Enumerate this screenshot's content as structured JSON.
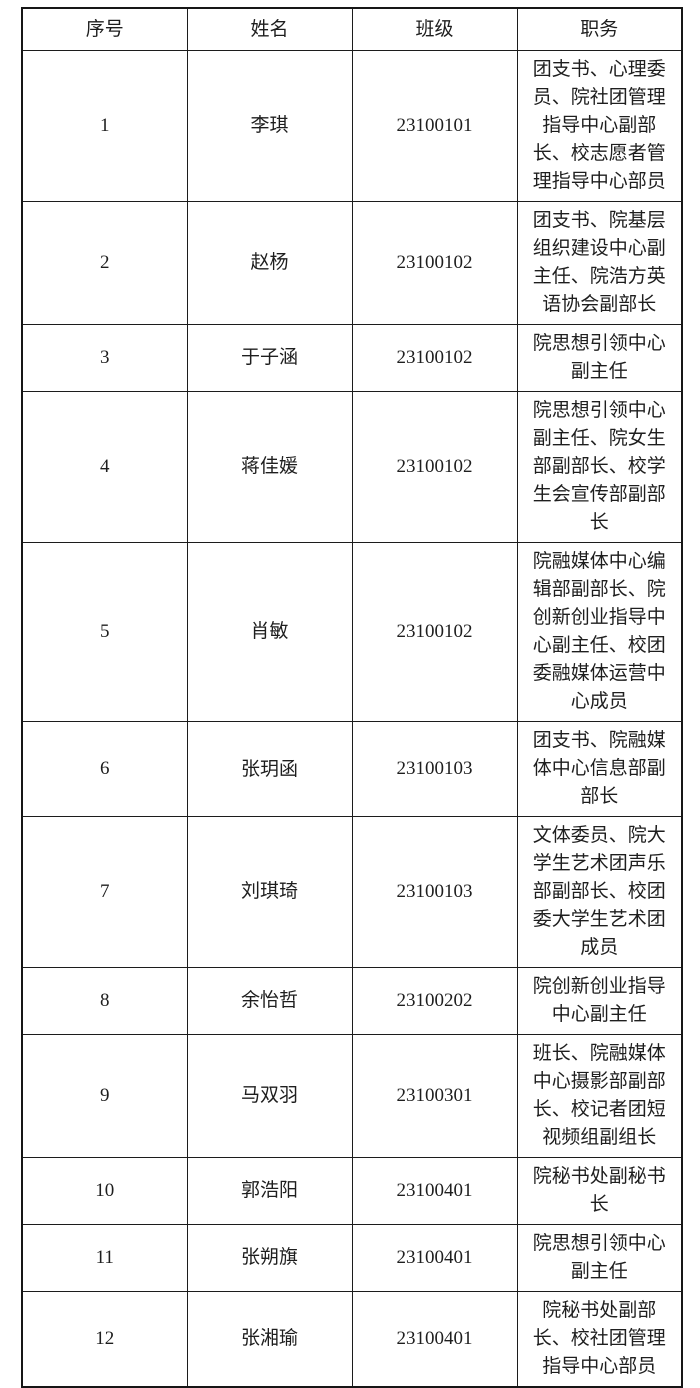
{
  "table": {
    "headers": [
      "序号",
      "姓名",
      "班级",
      "职务"
    ],
    "rows": [
      {
        "no": "1",
        "name": "李琪",
        "class": "23100101",
        "position": "团支书、心理委员、院社团管理指导中心副部长、校志愿者管理指导中心部员"
      },
      {
        "no": "2",
        "name": "赵杨",
        "class": "23100102",
        "position": "团支书、院基层组织建设中心副主任、院浩方英语协会副部长"
      },
      {
        "no": "3",
        "name": "于子涵",
        "class": "23100102",
        "position": "院思想引领中心副主任"
      },
      {
        "no": "4",
        "name": "蒋佳媛",
        "class": "23100102",
        "position": "院思想引领中心副主任、院女生部副部长、校学生会宣传部副部长"
      },
      {
        "no": "5",
        "name": "肖敏",
        "class": "23100102",
        "position": "院融媒体中心编辑部副部长、院创新创业指导中心副主任、校团委融媒体运营中心成员"
      },
      {
        "no": "6",
        "name": "张玥函",
        "name_parts": {
          "pre": "张",
          "special": "玥",
          "post": "函"
        },
        "class": "23100103",
        "position": "团支书、院融媒体中心信息部副部长"
      },
      {
        "no": "7",
        "name": "刘琪琦",
        "class": "23100103",
        "position": "文体委员、院大学生艺术团声乐部副部长、校团委大学生艺术团成员"
      },
      {
        "no": "8",
        "name": "余怡哲",
        "class": "23100202",
        "position": "院创新创业指导中心副主任"
      },
      {
        "no": "9",
        "name": "马双羽",
        "class": "23100301",
        "position": "班长、院融媒体中心摄影部副部长、校记者团短视频组副组长"
      },
      {
        "no": "10",
        "name": "郭浩阳",
        "class": "23100401",
        "position": "院秘书处副秘书长"
      },
      {
        "no": "11",
        "name": "张朔旗",
        "class": "23100401",
        "position": "院思想引领中心副主任"
      },
      {
        "no": "12",
        "name": "张湘瑜",
        "class": "23100401",
        "position": "院秘书处副部长、校社团管理指导中心部员"
      }
    ]
  }
}
